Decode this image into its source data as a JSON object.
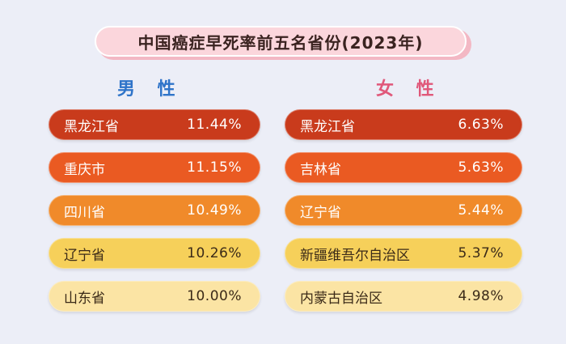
{
  "title": "中国癌症早死率前五名省份(2023年)",
  "male": {
    "heading": "男 性",
    "rows": [
      {
        "name": "黑龙江省",
        "value": "11.44%"
      },
      {
        "name": "重庆市",
        "value": "11.15%"
      },
      {
        "name": "四川省",
        "value": "10.49%"
      },
      {
        "name": "辽宁省",
        "value": "10.26%"
      },
      {
        "name": "山东省",
        "value": "10.00%"
      }
    ]
  },
  "female": {
    "heading": "女 性",
    "rows": [
      {
        "name": "黑龙江省",
        "value": "6.63%"
      },
      {
        "name": "吉林省",
        "value": "5.63%"
      },
      {
        "name": "辽宁省",
        "value": "5.44%"
      },
      {
        "name": "新疆维吾尔自治区",
        "value": "5.37%"
      },
      {
        "name": "内蒙古自治区",
        "value": "4.98%"
      }
    ]
  },
  "colors": {
    "rank1": "#c93b1c",
    "rank2": "#ea5a22",
    "rank3": "#f08a2a",
    "rank4": "#f6d05a",
    "rank5": "#fbe4a4",
    "male_heading": "#2f74c9",
    "female_heading": "#e0587a",
    "background": "#eceef7"
  }
}
